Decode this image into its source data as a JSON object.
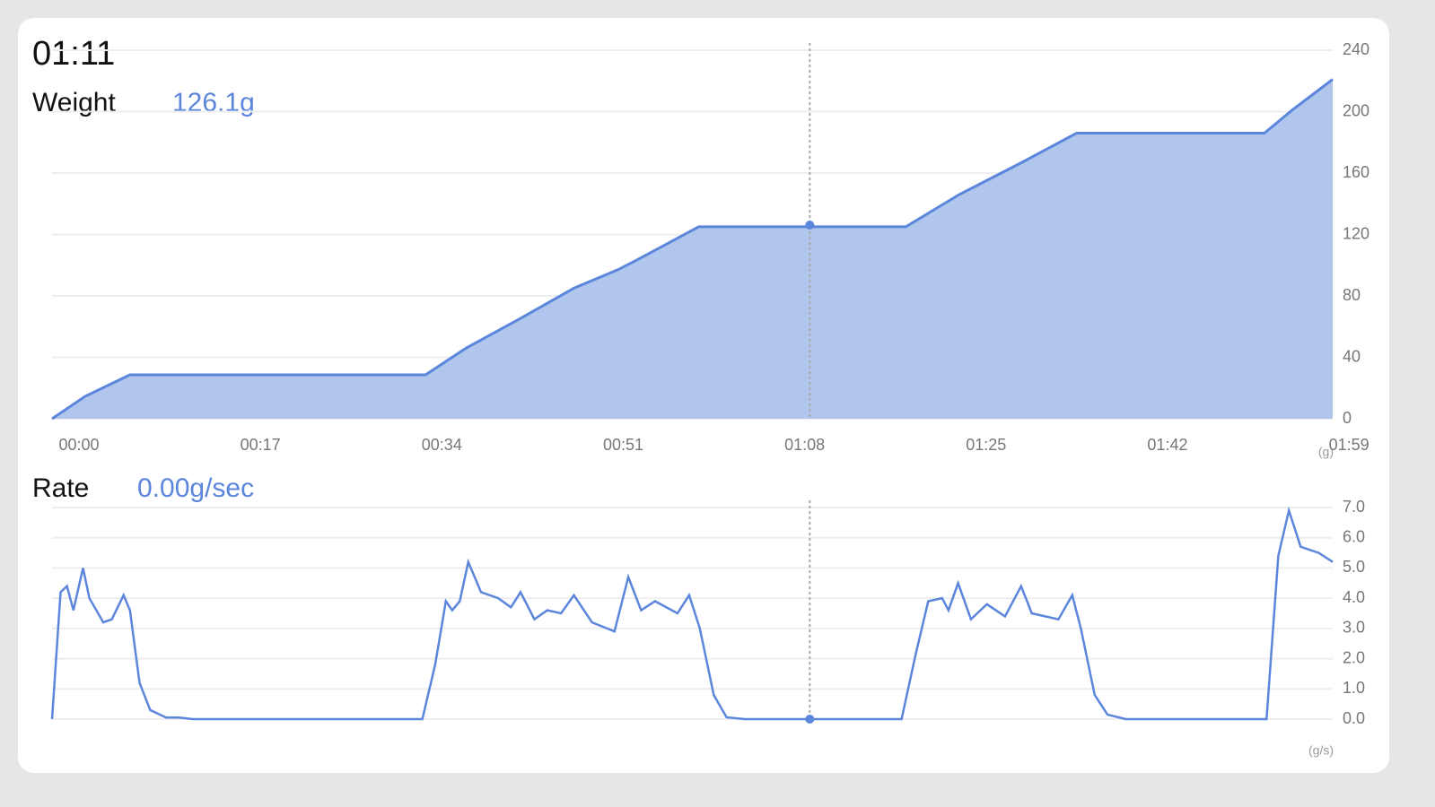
{
  "cursor": {
    "label": "01:11",
    "x": 71
  },
  "chart_data": [
    {
      "type": "area",
      "label": "Weight",
      "unit": "(g)",
      "color": "#5b86dc",
      "fill": "#b0c6ec",
      "readout": {
        "value": 126.1,
        "label": "126.1g"
      },
      "x": [
        0,
        3.1,
        7.3,
        35,
        38.8,
        43.8,
        48.9,
        53,
        54.7,
        60.6,
        80,
        85,
        90.9,
        96,
        113.6,
        116.2,
        120
      ],
      "values": [
        0,
        14.6,
        28.6,
        28.6,
        46,
        65,
        85,
        97,
        103,
        125,
        125,
        146,
        167,
        186,
        186,
        201,
        221
      ],
      "xlim": [
        0,
        120
      ],
      "xticks": [
        {
          "value": 0,
          "label": "00:00"
        },
        {
          "value": 17,
          "label": "00:17"
        },
        {
          "value": 34,
          "label": "00:34"
        },
        {
          "value": 51,
          "label": "00:51"
        },
        {
          "value": 68,
          "label": "01:08"
        },
        {
          "value": 85,
          "label": "01:25"
        },
        {
          "value": 102,
          "label": "01:42"
        },
        {
          "value": 119,
          "label": "01:59"
        }
      ],
      "ylim": [
        0,
        240
      ],
      "yticks": [
        0,
        40,
        80,
        120,
        160,
        200,
        240
      ],
      "grid": true
    },
    {
      "type": "line",
      "label": "Rate",
      "unit": "(g/s)",
      "color": "#5b86dc",
      "readout": {
        "value": 0,
        "label": "0.00g/sec"
      },
      "x": [
        0,
        0.8,
        1.4,
        2,
        2.9,
        3.5,
        4.8,
        5.6,
        6.7,
        7.3,
        8.2,
        9.2,
        10.7,
        11.9,
        13.2,
        34.7,
        35.9,
        36.9,
        37.5,
        38.2,
        39,
        40.2,
        41.8,
        43,
        43.9,
        45.2,
        46.4,
        47.7,
        48.9,
        50.6,
        52.7,
        54,
        55.2,
        56.5,
        58.6,
        59.7,
        60.7,
        62,
        63.2,
        64.9,
        79.6,
        80.9,
        82.1,
        83.4,
        84,
        84.9,
        86.1,
        87.6,
        89.3,
        90.8,
        91.8,
        94.3,
        95.6,
        96.4,
        97.7,
        98.9,
        100.6,
        113.8,
        114.9,
        115.9,
        117,
        118.7,
        120
      ],
      "values": [
        0,
        4.2,
        4.4,
        3.6,
        5.0,
        4.0,
        3.2,
        3.3,
        4.1,
        3.6,
        1.2,
        0.3,
        0.05,
        0.05,
        0,
        0,
        1.8,
        3.9,
        3.6,
        3.9,
        5.2,
        4.2,
        4.0,
        3.7,
        4.2,
        3.3,
        3.6,
        3.5,
        4.1,
        3.2,
        2.9,
        4.7,
        3.6,
        3.9,
        3.5,
        4.1,
        3.0,
        0.8,
        0.06,
        0,
        0,
        2.1,
        3.9,
        4.0,
        3.6,
        4.5,
        3.3,
        3.8,
        3.4,
        4.4,
        3.5,
        3.3,
        4.1,
        3.0,
        0.8,
        0.15,
        0,
        0,
        5.4,
        6.9,
        5.7,
        5.5,
        5.2
      ],
      "xlim": [
        0,
        120
      ],
      "ylim": [
        0,
        7
      ],
      "yticks": [
        {
          "value": 0,
          "label": "0.0"
        },
        {
          "value": 1,
          "label": "1.0"
        },
        {
          "value": 2,
          "label": "2.0"
        },
        {
          "value": 3,
          "label": "3.0"
        },
        {
          "value": 4,
          "label": "4.0"
        },
        {
          "value": 5,
          "label": "5.0"
        },
        {
          "value": 6,
          "label": "6.0"
        },
        {
          "value": 7,
          "label": "7.0"
        }
      ],
      "grid": true
    }
  ]
}
